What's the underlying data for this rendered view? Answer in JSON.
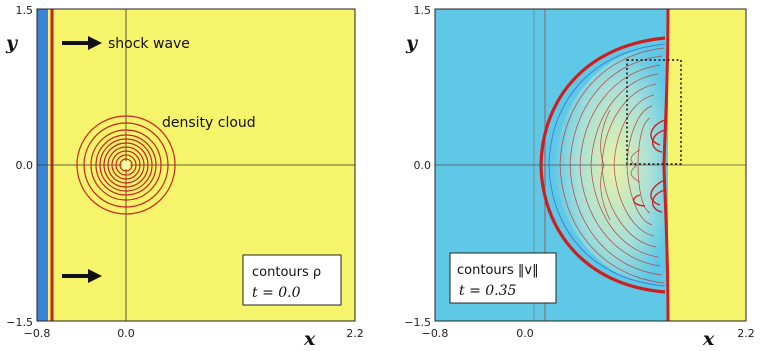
{
  "left_panel": {
    "y_axis_label": "y",
    "x_axis_label": "x",
    "y_ticks": [
      "1.5",
      "0.0",
      "−1.5"
    ],
    "x_ticks": [
      "−0.8",
      "0.0",
      "2.2"
    ],
    "annotation_shock": "shock wave",
    "annotation_cloud": "density cloud",
    "legend_line1": "contours ρ",
    "legend_line2": "t = 0.0"
  },
  "right_panel": {
    "y_axis_label": "y",
    "x_axis_label": "x",
    "y_ticks": [
      "1.5",
      "0.0",
      "−1.5"
    ],
    "x_ticks": [
      "−0.8",
      "0.0",
      "2.2"
    ],
    "legend_line1": "contours ‖v‖",
    "legend_line2": "t = 0.35"
  },
  "colors": {
    "background_yellow": "#f6f46a",
    "shocked_cyan": "#5ec8e6",
    "blue_strip": "#3a84d8",
    "contour_red": "#cc2020"
  }
}
